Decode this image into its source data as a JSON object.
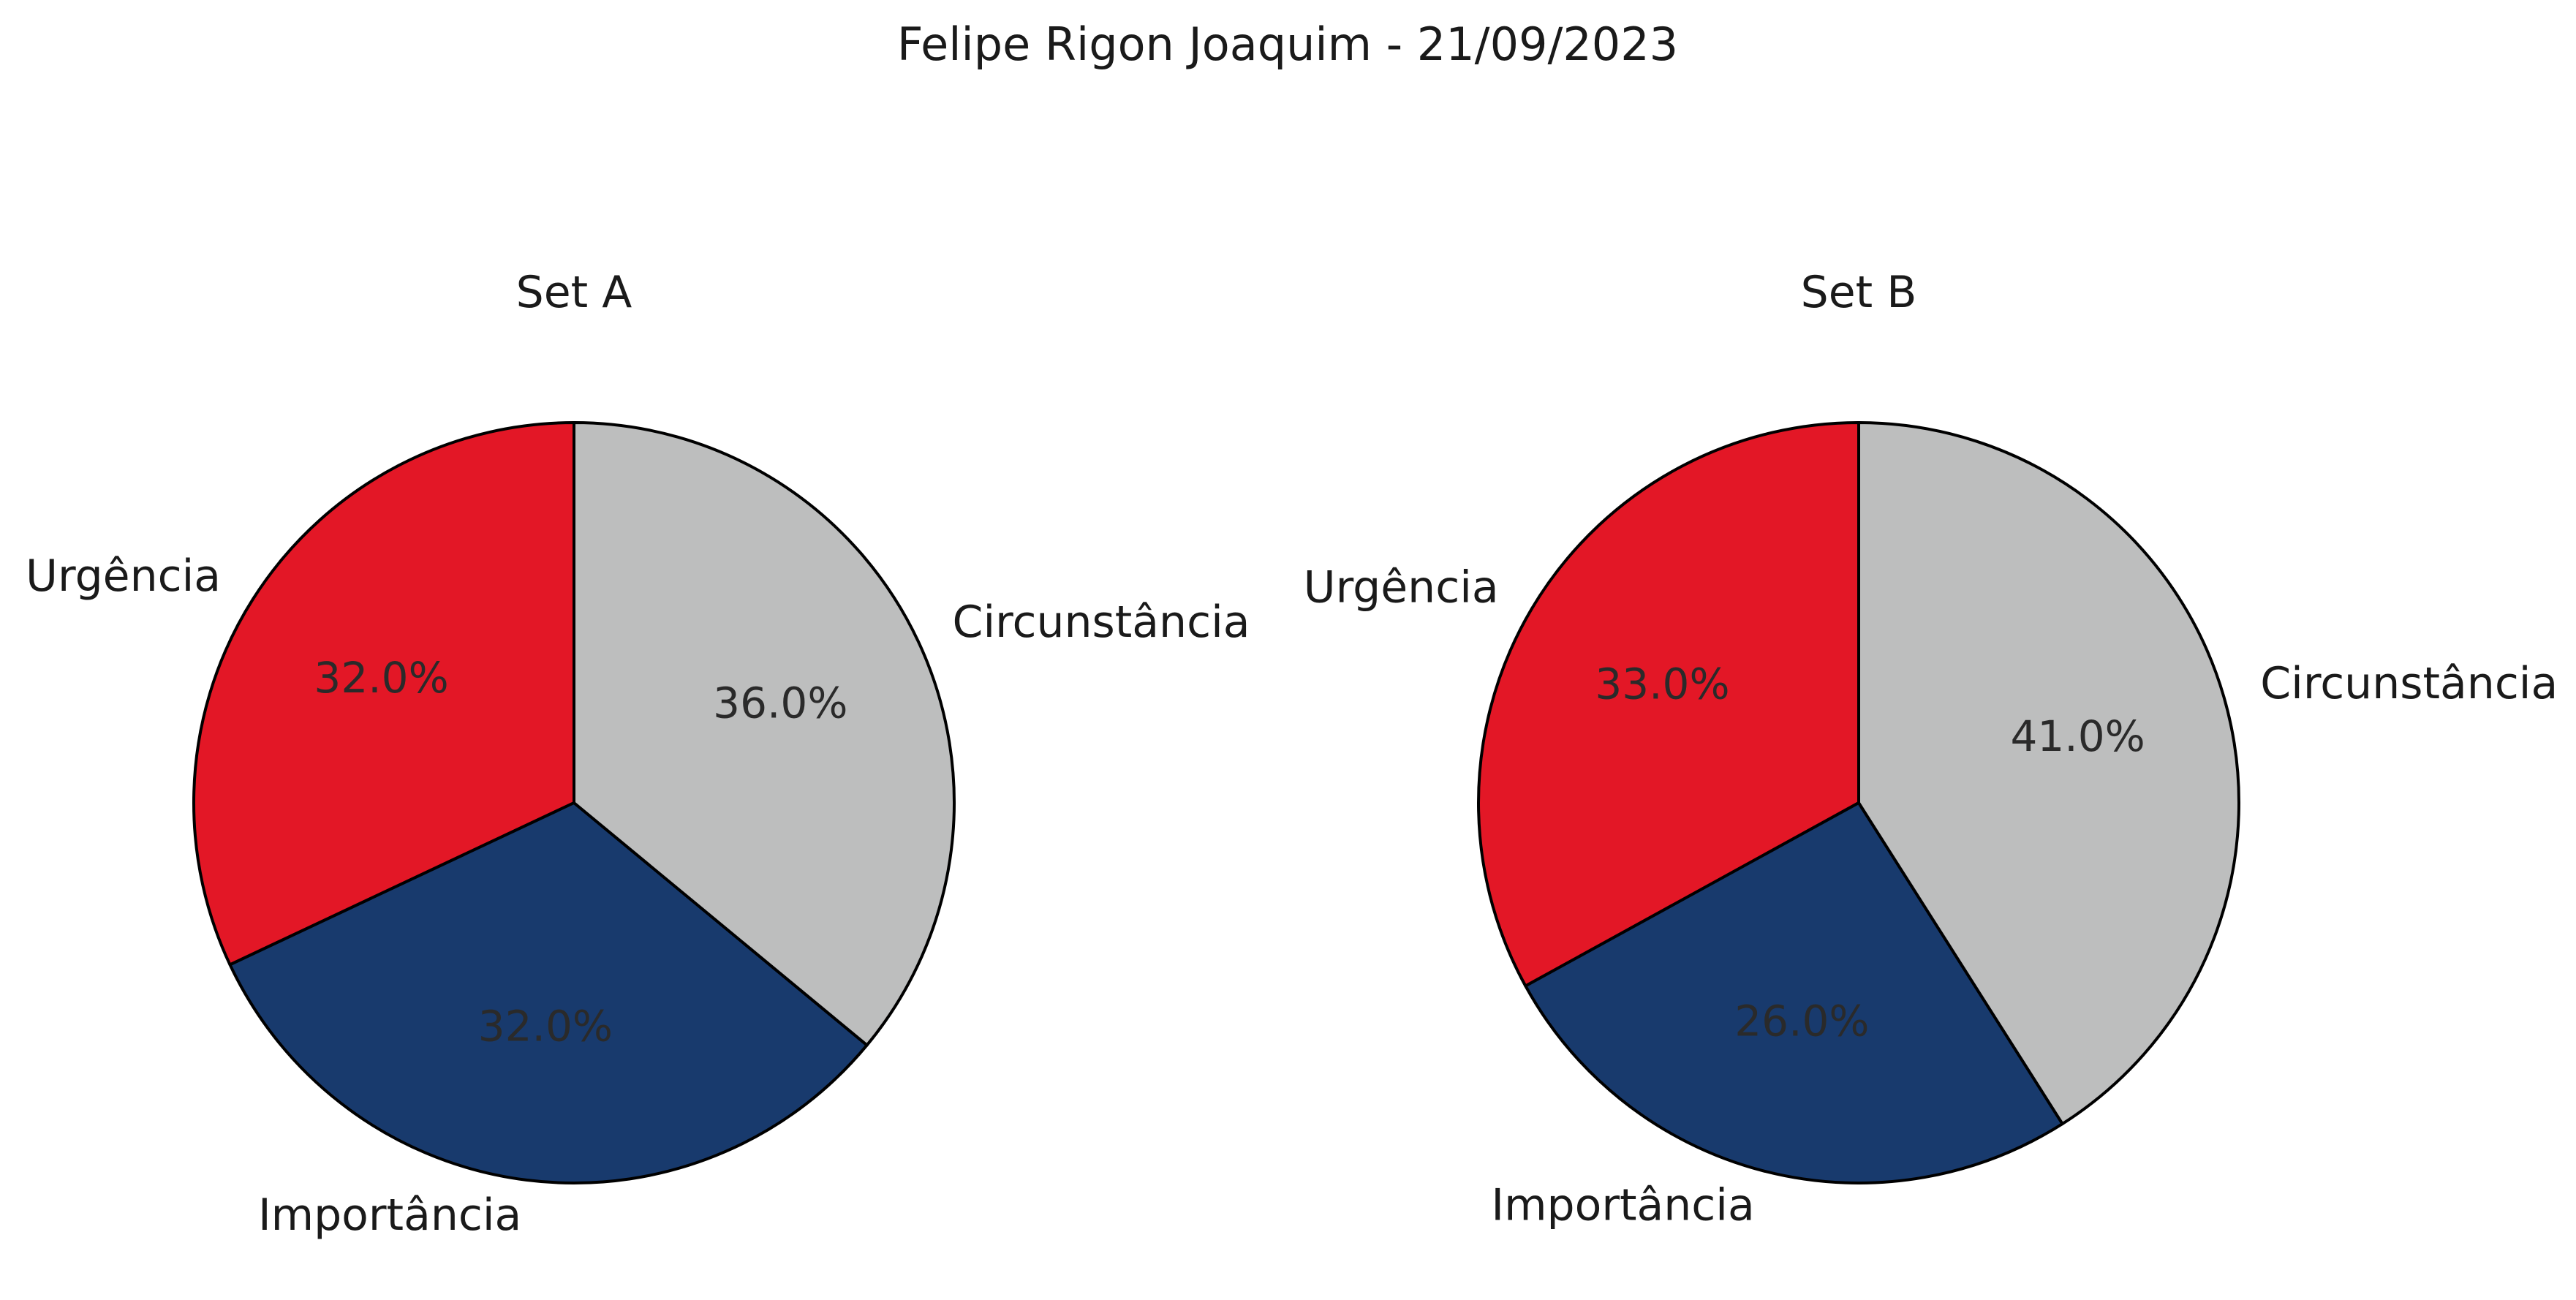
{
  "figure": {
    "suptitle": "Felipe Rigon Joaquim - 21/09/2023"
  },
  "chart_data": [
    {
      "type": "pie",
      "title": "Set A",
      "categories": [
        "Urgência",
        "Importância",
        "Circunstância"
      ],
      "values": [
        32.0,
        32.0,
        36.0
      ],
      "value_labels": [
        "32.0%",
        "32.0%",
        "36.0%"
      ],
      "colors": [
        "#e31726",
        "#183a6d",
        "#bdbebe"
      ],
      "start_angle_deg": 90,
      "direction": "counterclockwise"
    },
    {
      "type": "pie",
      "title": "Set B",
      "categories": [
        "Urgência",
        "Importância",
        "Circunstância"
      ],
      "values": [
        33.0,
        26.0,
        41.0
      ],
      "value_labels": [
        "33.0%",
        "26.0%",
        "41.0%"
      ],
      "colors": [
        "#e31726",
        "#183a6d",
        "#bdbebe"
      ],
      "start_angle_deg": 90,
      "direction": "counterclockwise"
    }
  ]
}
